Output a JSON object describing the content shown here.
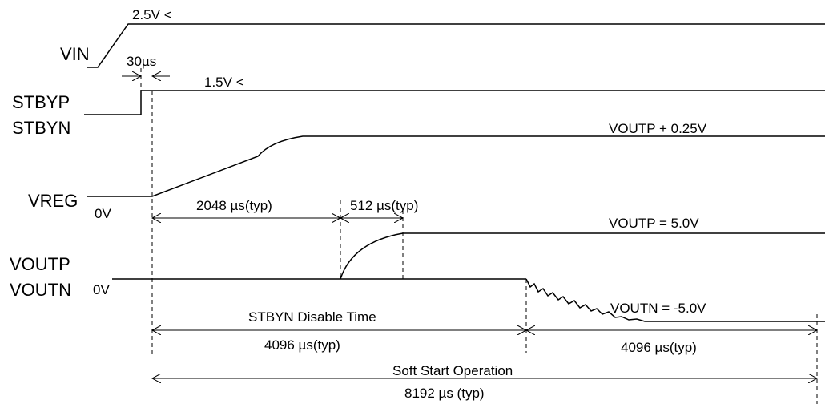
{
  "signals": {
    "vin": "VIN",
    "stbyp": "STBYP",
    "stbyn": "STBYN",
    "vreg": "VREG",
    "voutp": "VOUTP",
    "voutn": "VOUTN"
  },
  "levels": {
    "vin_high": "2.5V <",
    "stby_high": "1.5V <",
    "vreg_high": "VOUTP + 0.25V",
    "vreg_low": "0V",
    "voutp_high": "VOUTP =  5.0V",
    "voutn_low": "VOUTN =  -5.0V",
    "vout_zero": "0V"
  },
  "timings": {
    "delay": "30µs",
    "vreg_ramp": "2048 µs(typ)",
    "voutp_ramp": "512 µs(typ)",
    "disable_label": "STBYN Disable Time",
    "disable_time": "4096 µs(typ)",
    "voutn_time": "4096 µs(typ)",
    "soft_start_label": "Soft Start Operation",
    "soft_start_time": "8192 µs (typ)"
  }
}
